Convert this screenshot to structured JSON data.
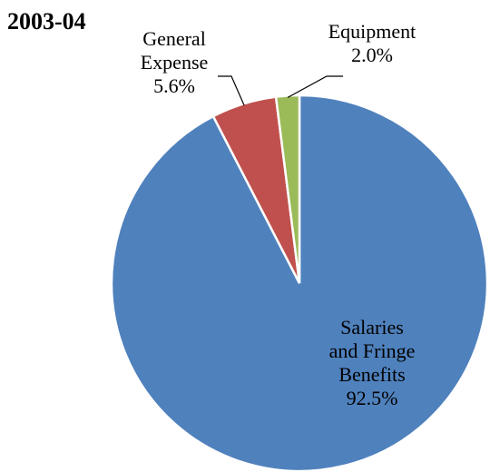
{
  "chart_data": {
    "type": "pie",
    "title": "2003-04",
    "slices": [
      {
        "label_lines": [
          "Salaries",
          "and Fringe",
          "Benefits"
        ],
        "value": 92.5,
        "value_label": "92.5%",
        "color": "#4F81BD"
      },
      {
        "label_lines": [
          "General",
          "Expense"
        ],
        "value": 5.6,
        "value_label": "5.6%",
        "color": "#C0504D"
      },
      {
        "label_lines": [
          "Equipment"
        ],
        "value": 2.0,
        "value_label": "2.0%",
        "color": "#9BBB59"
      }
    ]
  }
}
